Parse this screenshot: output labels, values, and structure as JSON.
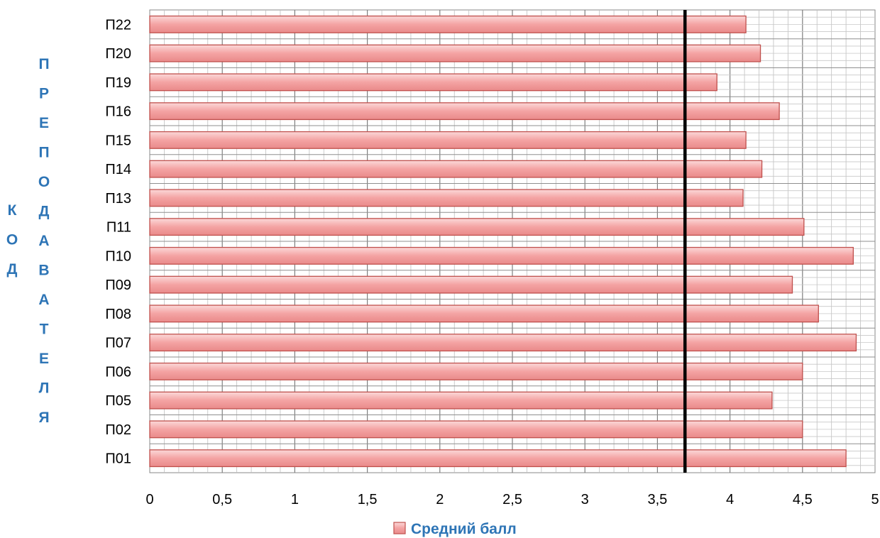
{
  "chart_data": {
    "type": "bar",
    "orientation": "horizontal",
    "categories": [
      "П01",
      "П02",
      "П05",
      "П06",
      "П07",
      "П08",
      "П09",
      "П10",
      "П11",
      "П13",
      "П14",
      "П15",
      "П16",
      "П19",
      "П20",
      "П22"
    ],
    "series": [
      {
        "name": "Средний балл",
        "values": [
          4.8,
          4.5,
          4.29,
          4.5,
          4.87,
          4.61,
          4.43,
          4.85,
          4.51,
          4.09,
          4.22,
          4.11,
          4.34,
          3.91,
          4.21,
          4.11
        ],
        "color": "#F4A3A3",
        "border_color": "#C0504D"
      }
    ],
    "reference_line": {
      "value": 3.69,
      "color": "#000000"
    },
    "ylabel": "КОД ПРЕПОДАВАТЕЛЯ",
    "ylabel_col1": [
      "К",
      "О",
      "Д"
    ],
    "ylabel_col2": [
      "П",
      "Р",
      "Е",
      "П",
      "О",
      "Д",
      "А",
      "В",
      "А",
      "Т",
      "Е",
      "Л",
      "Я"
    ],
    "xlim": [
      0,
      5
    ],
    "xticks": [
      0,
      0.5,
      1,
      1.5,
      2,
      2.5,
      3,
      3.5,
      4,
      4.5,
      5
    ],
    "xtick_labels": [
      "0",
      "0,5",
      "1",
      "1,5",
      "2",
      "2,5",
      "3",
      "3,5",
      "4",
      "4,5",
      "5"
    ],
    "grid": true,
    "legend_position": "bottom"
  }
}
